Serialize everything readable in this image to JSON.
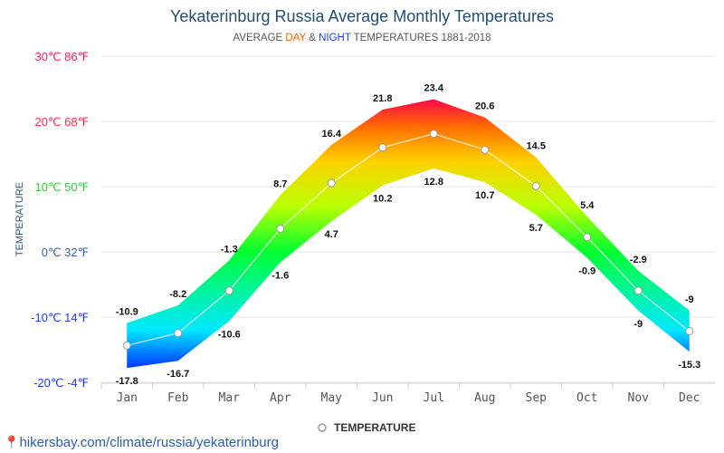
{
  "title": "Yekaterinburg Russia Average Monthly Temperatures",
  "subtitle": {
    "prefix": "AVERAGE ",
    "day": "DAY",
    "amp": " & ",
    "night": "NIGHT",
    "suffix": " TEMPERATURES 1881-2018"
  },
  "footer": "hikersbay.com/climate/russia/yekaterinburg",
  "chart_data": {
    "type": "area",
    "ylabel": "TEMPERATURE",
    "ylim": [
      -20,
      30
    ],
    "yticks": [
      {
        "v": 30,
        "label": "30℃ 86℉",
        "color": "#ff1a5e"
      },
      {
        "v": 20,
        "label": "20℃ 68℉",
        "color": "#ff2a4a"
      },
      {
        "v": 10,
        "label": "10℃ 50℉",
        "color": "#33cc33"
      },
      {
        "v": 0,
        "label": "0℃ 32℉",
        "color": "#3366aa"
      },
      {
        "v": -10,
        "label": "-10℃ 14℉",
        "color": "#1a3cff"
      },
      {
        "v": -20,
        "label": "-20℃ -4℉",
        "color": "#1a3cff"
      }
    ],
    "categories": [
      "Jan",
      "Feb",
      "Mar",
      "Apr",
      "May",
      "Jun",
      "Jul",
      "Aug",
      "Sep",
      "Oct",
      "Nov",
      "Dec"
    ],
    "series": [
      {
        "name": "Day",
        "values": [
          -10.9,
          -8.2,
          -1.3,
          8.7,
          16.4,
          21.8,
          23.4,
          20.6,
          14.5,
          5.4,
          -2.9,
          -9
        ]
      },
      {
        "name": "Night",
        "values": [
          -17.8,
          -16.7,
          -10.6,
          -1.6,
          4.7,
          10.2,
          12.8,
          10.7,
          5.7,
          -0.9,
          -9,
          -15.3
        ]
      }
    ],
    "legend": {
      "label": "TEMPERATURE",
      "placement": "bottom"
    }
  }
}
